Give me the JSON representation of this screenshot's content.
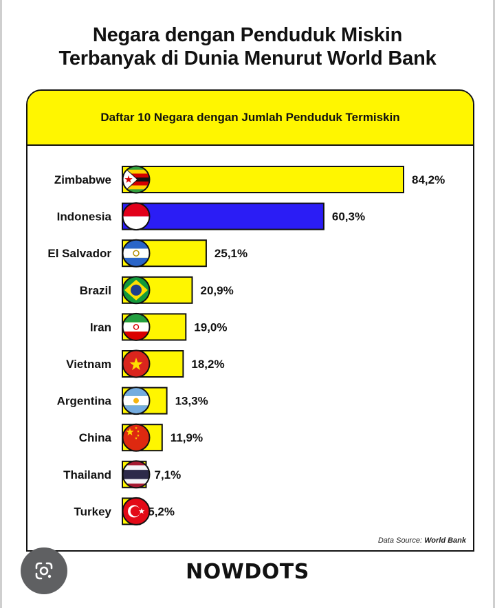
{
  "title_lines": [
    "Negara dengan Penduduk Miskin",
    "Terbanyak di Dunia Menurut World Bank"
  ],
  "card_header": "Daftar 10 Negara dengan Jumlah Penduduk Termiskin",
  "source": {
    "prefix": "Data Source:",
    "name": "World Bank"
  },
  "brand": "NOWDOTS",
  "colors": {
    "bar_default": "#fff600",
    "bar_highlight": "#2b1df5",
    "border": "#111111"
  },
  "icons": {
    "lens": "google-lens-icon"
  },
  "chart_data": {
    "type": "bar",
    "orientation": "horizontal",
    "title": "Daftar 10 Negara dengan Jumlah Penduduk Termiskin",
    "categories": [
      "Zimbabwe",
      "Indonesia",
      "El Salvador",
      "Brazil",
      "Iran",
      "Vietnam",
      "Argentina",
      "China",
      "Thailand",
      "Turkey"
    ],
    "values": [
      84.2,
      60.3,
      25.1,
      20.9,
      19.0,
      18.2,
      13.3,
      11.9,
      7.1,
      5.2
    ],
    "value_labels": [
      "84,2%",
      "60,3%",
      "25,1%",
      "20,9%",
      "19,0%",
      "18,2%",
      "13,3%",
      "11,9%",
      "7,1%",
      "5,2%"
    ],
    "highlight": "Indonesia",
    "flag_icons": [
      "zimbabwe-flag-icon",
      "indonesia-flag-icon",
      "el-salvador-flag-icon",
      "brazil-flag-icon",
      "iran-flag-icon",
      "vietnam-flag-icon",
      "argentina-flag-icon",
      "china-flag-icon",
      "thailand-flag-icon",
      "turkey-flag-icon"
    ],
    "xlim": [
      0,
      100
    ],
    "grid": false,
    "legend": "none"
  }
}
